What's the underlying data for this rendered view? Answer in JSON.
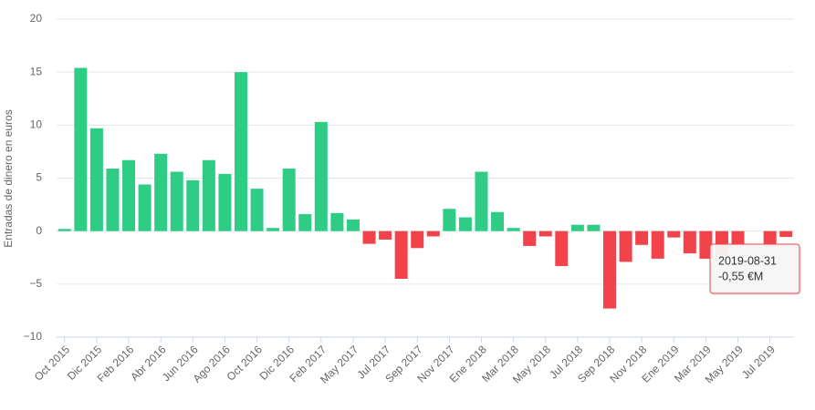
{
  "chart_data": {
    "type": "bar",
    "y_label": "Entradas de dinero en euros",
    "categories": [
      "Oct 2015",
      null,
      "Dic 2015",
      null,
      "Feb 2016",
      null,
      "Abr 2016",
      null,
      "Jun 2016",
      null,
      "Ago 2016",
      null,
      "Oct 2016",
      null,
      "Dic 2016",
      null,
      "Feb 2017",
      null,
      "May 2017",
      null,
      "Jul 2017",
      null,
      "Sep 2017",
      null,
      "Nov 2017",
      null,
      "Ene 2018",
      null,
      "Mar 2018",
      null,
      "May 2018",
      null,
      "Jul 2018",
      null,
      "Sep 2018",
      null,
      "Nov 2018",
      null,
      "Ene 2019",
      null,
      "Mar 2019",
      null,
      "May 2019",
      null,
      "Jul 2019",
      null
    ],
    "values": [
      0.2,
      15.4,
      9.7,
      5.9,
      6.7,
      4.4,
      7.3,
      5.6,
      4.8,
      6.7,
      5.4,
      15.0,
      4.0,
      0.3,
      5.9,
      1.6,
      10.3,
      1.7,
      1.1,
      -1.2,
      -0.8,
      -4.5,
      -1.6,
      -0.5,
      2.1,
      1.3,
      5.6,
      1.8,
      0.3,
      -1.4,
      -0.5,
      -3.3,
      0.6,
      0.6,
      -7.3,
      -2.9,
      -1.3,
      -2.6,
      -0.6,
      -2.1,
      -2.6,
      -2.4,
      -1.4,
      0,
      -1.5,
      -0.55
    ],
    "positive_color": "#2ecc85",
    "negative_color": "#f2434b",
    "ylim": [
      -10,
      20
    ],
    "yticks": [
      {
        "value": -10,
        "label": "−10"
      },
      {
        "value": -5,
        "label": "−5"
      },
      0,
      5,
      10,
      15,
      20
    ],
    "grid": true,
    "tooltip": {
      "date": "2019-08-31",
      "text": "-0,55 €M"
    }
  }
}
